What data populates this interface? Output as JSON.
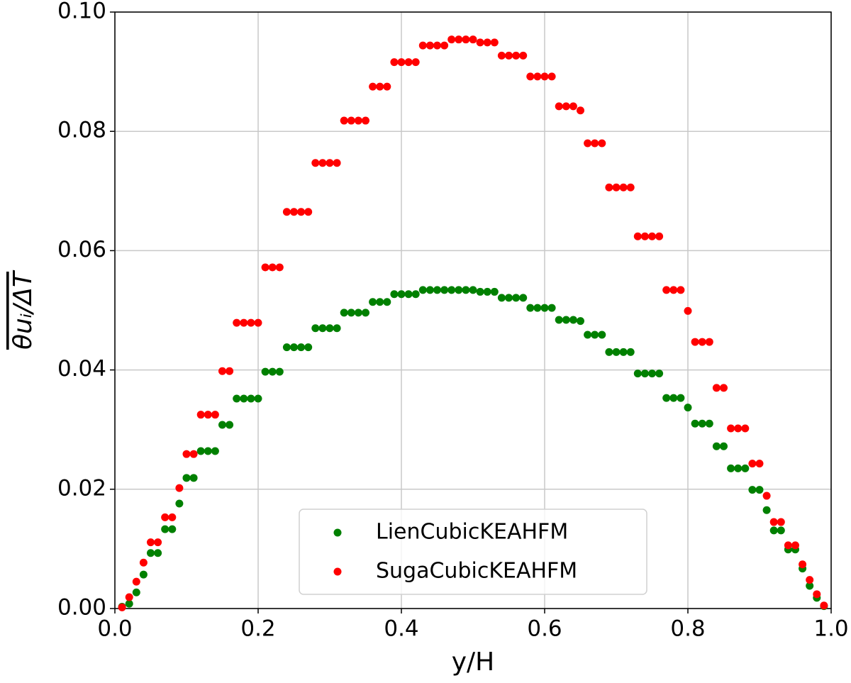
{
  "chart_data": {
    "type": "scatter",
    "x_label": "y/H",
    "y_label": "θuᵢ/ΔT",
    "x": [
      0.01,
      0.02,
      0.03,
      0.04,
      0.05,
      0.06,
      0.07,
      0.08,
      0.09,
      0.1,
      0.11,
      0.12,
      0.13,
      0.14,
      0.15,
      0.16,
      0.17,
      0.18,
      0.19,
      0.2,
      0.21,
      0.22,
      0.23,
      0.24,
      0.25,
      0.26,
      0.27,
      0.28,
      0.29,
      0.3,
      0.31,
      0.32,
      0.33,
      0.34,
      0.35,
      0.36,
      0.37,
      0.38,
      0.39,
      0.4,
      0.41,
      0.42,
      0.43,
      0.44,
      0.45,
      0.46,
      0.47,
      0.48,
      0.49,
      0.5,
      0.51,
      0.52,
      0.53,
      0.54,
      0.55,
      0.56,
      0.57,
      0.58,
      0.59,
      0.6,
      0.61,
      0.62,
      0.63,
      0.64,
      0.65,
      0.66,
      0.67,
      0.68,
      0.69,
      0.7,
      0.71,
      0.72,
      0.73,
      0.74,
      0.75,
      0.76,
      0.77,
      0.78,
      0.79,
      0.8,
      0.81,
      0.82,
      0.83,
      0.84,
      0.85,
      0.86,
      0.87,
      0.88,
      0.89,
      0.9,
      0.91,
      0.92,
      0.93,
      0.94,
      0.95,
      0.96,
      0.97,
      0.98,
      0.99
    ],
    "series": [
      {
        "name": "LienCubicKEAHFM",
        "color": "#008000",
        "values": [
          0.0003,
          0.0008,
          0.0027,
          0.0057,
          0.0093,
          0.0093,
          0.0133,
          0.0133,
          0.0176,
          0.0219,
          0.0219,
          0.0264,
          0.0264,
          0.0264,
          0.0308,
          0.0308,
          0.0352,
          0.0352,
          0.0352,
          0.0352,
          0.0397,
          0.0397,
          0.0397,
          0.0438,
          0.0438,
          0.0438,
          0.0438,
          0.047,
          0.047,
          0.047,
          0.047,
          0.0496,
          0.0496,
          0.0496,
          0.0496,
          0.0514,
          0.0514,
          0.0514,
          0.0527,
          0.0527,
          0.0527,
          0.0527,
          0.0534,
          0.0534,
          0.0534,
          0.0534,
          0.0534,
          0.0534,
          0.0534,
          0.0534,
          0.0531,
          0.0531,
          0.0531,
          0.0521,
          0.0521,
          0.0521,
          0.0521,
          0.0504,
          0.0504,
          0.0504,
          0.0504,
          0.0484,
          0.0484,
          0.0484,
          0.0482,
          0.0459,
          0.0459,
          0.0459,
          0.043,
          0.043,
          0.043,
          0.043,
          0.0394,
          0.0394,
          0.0394,
          0.0394,
          0.0353,
          0.0353,
          0.0353,
          0.0337,
          0.031,
          0.031,
          0.031,
          0.0272,
          0.0272,
          0.0235,
          0.0235,
          0.0235,
          0.0199,
          0.0199,
          0.0165,
          0.0131,
          0.0131,
          0.0099,
          0.0099,
          0.0067,
          0.0038,
          0.0018,
          0.0004
        ]
      },
      {
        "name": "SugaCubicKEAHFM",
        "color": "#ff0000",
        "values": [
          0.0002,
          0.0019,
          0.0045,
          0.0077,
          0.0111,
          0.0111,
          0.0153,
          0.0153,
          0.0202,
          0.0259,
          0.0259,
          0.0325,
          0.0325,
          0.0325,
          0.0398,
          0.0398,
          0.0479,
          0.0479,
          0.0479,
          0.0479,
          0.0572,
          0.0572,
          0.0572,
          0.0665,
          0.0665,
          0.0665,
          0.0665,
          0.0747,
          0.0747,
          0.0747,
          0.0747,
          0.0818,
          0.0818,
          0.0818,
          0.0818,
          0.0875,
          0.0875,
          0.0875,
          0.0916,
          0.0916,
          0.0916,
          0.0916,
          0.0944,
          0.0944,
          0.0944,
          0.0944,
          0.0954,
          0.0954,
          0.0954,
          0.0954,
          0.0949,
          0.0949,
          0.0949,
          0.0927,
          0.0927,
          0.0927,
          0.0927,
          0.0892,
          0.0892,
          0.0892,
          0.0892,
          0.0842,
          0.0842,
          0.0842,
          0.0835,
          0.078,
          0.078,
          0.078,
          0.0706,
          0.0706,
          0.0706,
          0.0706,
          0.0624,
          0.0624,
          0.0624,
          0.0624,
          0.0534,
          0.0534,
          0.0534,
          0.0499,
          0.0447,
          0.0447,
          0.0447,
          0.037,
          0.037,
          0.0302,
          0.0302,
          0.0302,
          0.0243,
          0.0243,
          0.0189,
          0.0145,
          0.0145,
          0.0106,
          0.0106,
          0.0074,
          0.0048,
          0.0024,
          0.0005
        ]
      }
    ],
    "xlim": [
      0,
      1
    ],
    "ylim": [
      0,
      0.1
    ],
    "xticks": [
      {
        "value": 0,
        "label": "0.0"
      },
      0.2,
      0.4,
      0.6,
      0.8,
      {
        "value": 1,
        "label": "1.0"
      }
    ],
    "yticks": [
      {
        "value": 0,
        "label": "0.00"
      },
      {
        "value": 0.02,
        "label": "0.02"
      },
      {
        "value": 0.04,
        "label": "0.04"
      },
      {
        "value": 0.06,
        "label": "0.06"
      },
      {
        "value": 0.08,
        "label": "0.08"
      },
      {
        "value": 0.1,
        "label": "0.10"
      }
    ],
    "grid": true,
    "legend": "lower center"
  }
}
